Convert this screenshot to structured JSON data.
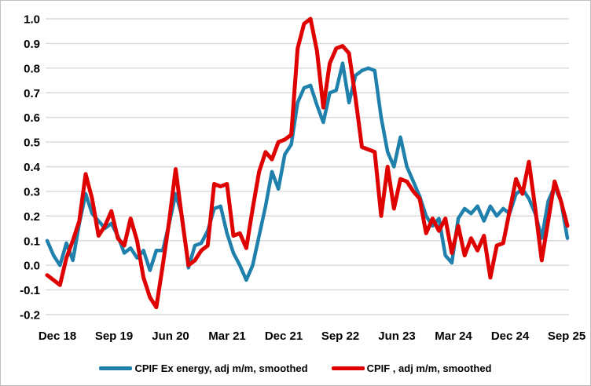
{
  "chart_data": {
    "type": "line",
    "title": "",
    "x_frequency": "monthly",
    "x_range_start": "Dec 2018",
    "x_range_end": "Sep 2025",
    "x_tick_labels": [
      "Dec 18",
      "Sep 19",
      "Jun 20",
      "Mar 21",
      "Dec 21",
      "Sep 22",
      "Jun 23",
      "Mar 24",
      "Dec 24",
      "Sep 25"
    ],
    "y_tick_labels": [
      "1.0",
      "0.9",
      "0.8",
      "0.7",
      "0.6",
      "0.5",
      "0.4",
      "0.3",
      "0.2",
      "0.1",
      "0.0",
      "-0.1",
      "-0.2"
    ],
    "ylim": [
      -0.2,
      1.0
    ],
    "y_step": 0.1,
    "grid": "horizontal",
    "legend_position": "bottom",
    "series": [
      {
        "name": "CPIF Ex energy, adj m/m, smoothed",
        "color": "#1F80AC",
        "values": [
          0.1,
          0.04,
          0.0,
          0.09,
          0.02,
          0.17,
          0.29,
          0.21,
          0.18,
          0.15,
          0.17,
          0.12,
          0.05,
          0.07,
          0.03,
          0.06,
          -0.02,
          0.06,
          0.06,
          0.17,
          0.29,
          0.2,
          -0.01,
          0.08,
          0.09,
          0.14,
          0.23,
          0.24,
          0.13,
          0.05,
          0.0,
          -0.06,
          0.0,
          0.12,
          0.24,
          0.38,
          0.31,
          0.45,
          0.49,
          0.66,
          0.72,
          0.73,
          0.65,
          0.58,
          0.7,
          0.71,
          0.82,
          0.66,
          0.77,
          0.79,
          0.8,
          0.79,
          0.6,
          0.46,
          0.4,
          0.52,
          0.4,
          0.34,
          0.28,
          0.2,
          0.16,
          0.19,
          0.04,
          0.01,
          0.19,
          0.23,
          0.21,
          0.24,
          0.18,
          0.24,
          0.2,
          0.23,
          0.21,
          0.29,
          0.31,
          0.27,
          0.21,
          0.11,
          0.26,
          0.32,
          0.26,
          0.11
        ]
      },
      {
        "name": "CPIF , adj m/m, smoothed",
        "color": "#DF0000",
        "values": [
          -0.04,
          -0.06,
          -0.08,
          0.03,
          0.1,
          0.18,
          0.37,
          0.27,
          0.12,
          0.16,
          0.22,
          0.11,
          0.08,
          0.19,
          0.1,
          -0.05,
          -0.13,
          -0.17,
          0.0,
          0.18,
          0.39,
          0.19,
          0.0,
          0.02,
          0.06,
          0.08,
          0.33,
          0.32,
          0.33,
          0.12,
          0.13,
          0.07,
          0.23,
          0.38,
          0.46,
          0.43,
          0.5,
          0.51,
          0.53,
          0.88,
          0.98,
          1.0,
          0.87,
          0.64,
          0.82,
          0.88,
          0.89,
          0.86,
          0.68,
          0.48,
          0.47,
          0.46,
          0.2,
          0.4,
          0.23,
          0.35,
          0.34,
          0.3,
          0.27,
          0.13,
          0.19,
          0.14,
          0.19,
          0.05,
          0.16,
          0.04,
          0.11,
          0.06,
          0.12,
          -0.05,
          0.08,
          0.09,
          0.22,
          0.35,
          0.29,
          0.42,
          0.23,
          0.02,
          0.18,
          0.34,
          0.26,
          0.16
        ]
      }
    ]
  },
  "colors": {
    "background": "#FFFFFF",
    "gridline": "#D9D9D9",
    "axis_text": "#000000",
    "border": "#BFBFBF"
  }
}
